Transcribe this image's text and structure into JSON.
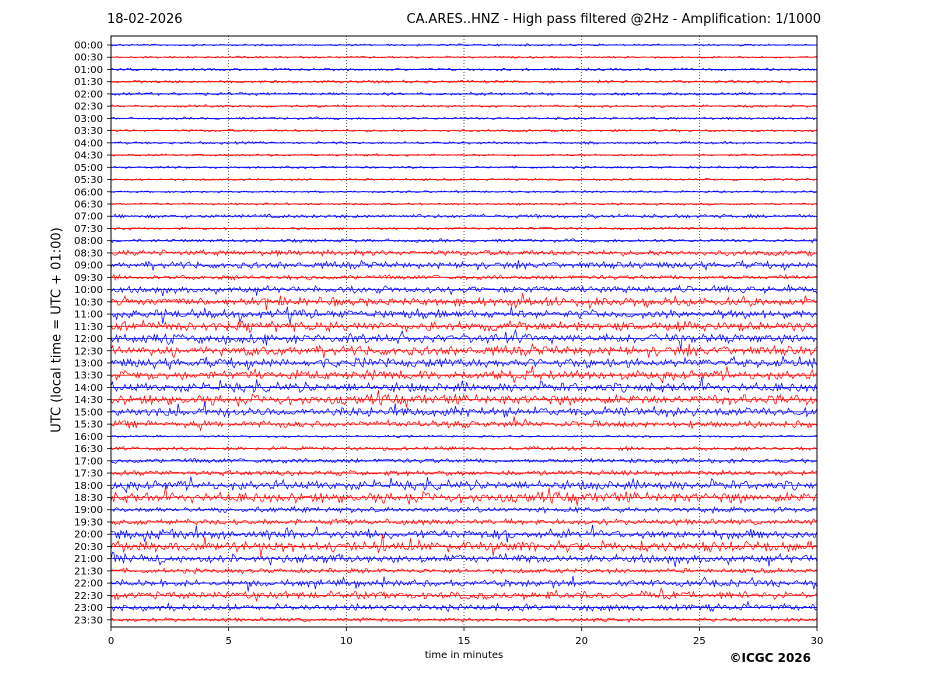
{
  "chart_data": {
    "type": "line",
    "date": "18-02-2026",
    "title": "CA.ARES..HNZ - High pass filtered @2Hz - Amplification: 1/1000",
    "xlabel": "time in minutes",
    "ylabel": "UTC (local time = UTC + 01:00)",
    "copyright": "©ICGC 2026",
    "xlim": [
      0,
      30
    ],
    "xticks": [
      0,
      5,
      10,
      15,
      20,
      25,
      30
    ],
    "grid": "vertical dotted at x ticks",
    "trace_colors": [
      "#0000ff",
      "#ff0000"
    ],
    "traces": [
      {
        "label": "00:00",
        "level": 0.1
      },
      {
        "label": "00:30",
        "level": 0.1
      },
      {
        "label": "01:00",
        "level": 0.15
      },
      {
        "label": "01:30",
        "level": 0.2
      },
      {
        "label": "02:00",
        "level": 0.2
      },
      {
        "label": "02:30",
        "level": 0.15
      },
      {
        "label": "03:00",
        "level": 0.15
      },
      {
        "label": "03:30",
        "level": 0.15
      },
      {
        "label": "04:00",
        "level": 0.15
      },
      {
        "label": "04:30",
        "level": 0.12
      },
      {
        "label": "05:00",
        "level": 0.12
      },
      {
        "label": "05:30",
        "level": 0.12
      },
      {
        "label": "06:00",
        "level": 0.1
      },
      {
        "label": "06:30",
        "level": 0.12
      },
      {
        "label": "07:00",
        "level": 0.3
      },
      {
        "label": "07:30",
        "level": 0.15
      },
      {
        "label": "08:00",
        "level": 0.25
      },
      {
        "label": "08:30",
        "level": 0.5
      },
      {
        "label": "09:00",
        "level": 0.6
      },
      {
        "label": "09:30",
        "level": 0.4
      },
      {
        "label": "10:00",
        "level": 0.6
      },
      {
        "label": "10:30",
        "level": 0.8
      },
      {
        "label": "11:00",
        "level": 0.8
      },
      {
        "label": "11:30",
        "level": 0.9
      },
      {
        "label": "12:00",
        "level": 0.9
      },
      {
        "label": "12:30",
        "level": 0.9
      },
      {
        "label": "13:00",
        "level": 0.9
      },
      {
        "label": "13:30",
        "level": 0.9
      },
      {
        "label": "14:00",
        "level": 0.9
      },
      {
        "label": "14:30",
        "level": 0.95
      },
      {
        "label": "15:00",
        "level": 0.9
      },
      {
        "label": "15:30",
        "level": 0.6
      },
      {
        "label": "16:00",
        "level": 0.1
      },
      {
        "label": "16:30",
        "level": 0.3
      },
      {
        "label": "17:00",
        "level": 0.4
      },
      {
        "label": "17:30",
        "level": 0.45
      },
      {
        "label": "18:00",
        "level": 0.9
      },
      {
        "label": "18:30",
        "level": 1.0
      },
      {
        "label": "19:00",
        "level": 0.5
      },
      {
        "label": "19:30",
        "level": 0.5
      },
      {
        "label": "20:00",
        "level": 0.9
      },
      {
        "label": "20:30",
        "level": 1.0
      },
      {
        "label": "21:00",
        "level": 0.8
      },
      {
        "label": "21:30",
        "level": 0.4
      },
      {
        "label": "22:00",
        "level": 0.6
      },
      {
        "label": "22:30",
        "level": 0.7
      },
      {
        "label": "23:00",
        "level": 0.6
      },
      {
        "label": "23:30",
        "level": 0.3
      }
    ]
  }
}
